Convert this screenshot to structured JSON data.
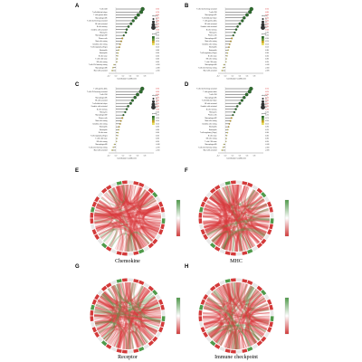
{
  "panel_letters": [
    "A",
    "B",
    "C",
    "D",
    "E",
    "F",
    "G",
    "H"
  ],
  "chord_captions": [
    "Chemokine",
    "MHC",
    "Receptor",
    "Immune checkpoint"
  ],
  "lollipop_axis_label": "Correlation Coefficient",
  "legend": {
    "size_title": "abs(cor)",
    "size_values": [
      "0.1",
      "0.2",
      "0.3",
      "0.4"
    ],
    "color_title": "pvalue"
  },
  "colors": {
    "dot_strong": "#2e6b2e",
    "dot_mid": "#c9a227",
    "dot_weak": "#e8e060",
    "pval_red": "#d62728",
    "chord": "#d9393c",
    "ring_green": "#4f9a4a",
    "ring_red": "#d33a3a"
  },
  "chart_data": [
    {
      "type": "scatter",
      "panel": "A",
      "style": "lollipop",
      "xlabel": "Correlation Coefficient",
      "xlim": [
        -0.2,
        0.8
      ],
      "categories": [
        "T cells CD8",
        "T cells follicular helper",
        "T cells gamma delta",
        "Macrophages M1",
        "T cells CD4 memory activated",
        "NK cells activated",
        "B cells memory",
        "Dendritic cells activated",
        "Monocytes",
        "Macrophages M2",
        "Plasma cells",
        "Mast cells resting",
        "Dendritic cells resting",
        "T cells regulatory (Tregs)",
        "Neutrophils",
        "Eosinophils",
        "B cells naive",
        "T cells CD4 naive",
        "NK cells resting",
        "T cells CD4 memory resting",
        "Macrophages M0",
        "Mast cells activated"
      ],
      "values": [
        0.74,
        0.7,
        0.62,
        0.55,
        0.48,
        0.42,
        0.35,
        0.3,
        0.28,
        0.22,
        0.18,
        0.15,
        0.12,
        0.1,
        0.08,
        0.06,
        0.05,
        0.04,
        0.03,
        -0.05,
        -0.08,
        -0.1
      ]
    },
    {
      "type": "scatter",
      "panel": "B",
      "style": "lollipop",
      "xlabel": "Correlation Coefficient",
      "xlim": [
        -0.2,
        0.8
      ],
      "categories": [
        "T cells CD4 memory activated",
        "T cells CD8",
        "Macrophages M1",
        "T cells follicular helper",
        "T cells gamma delta",
        "NK cells activated",
        "Dendritic cells activated",
        "B cells memory",
        "Monocytes",
        "Plasma cells",
        "Macrophages M2",
        "Mast cells resting",
        "Dendritic cells resting",
        "Neutrophils",
        "Eosinophils",
        "T cells regulatory (Tregs)",
        "B cells naive",
        "NK cells resting",
        "T cells CD4 naive",
        "Macrophages M0",
        "T cells CD4 memory resting",
        "Mast cells activated"
      ],
      "values": [
        0.72,
        0.68,
        0.6,
        0.52,
        0.47,
        0.4,
        0.34,
        0.3,
        0.26,
        0.22,
        0.18,
        0.15,
        0.12,
        0.1,
        0.08,
        0.06,
        0.05,
        0.03,
        0.02,
        -0.04,
        -0.06,
        -0.09
      ]
    },
    {
      "type": "scatter",
      "panel": "C",
      "style": "lollipop",
      "xlabel": "Correlation Coefficient",
      "xlim": [
        -0.2,
        0.8
      ],
      "categories": [
        "T cells gamma delta",
        "T cells CD4 memory activated",
        "T cells CD8",
        "Macrophages M1",
        "NK cells activated",
        "T cells follicular helper",
        "Dendritic cells activated",
        "B cells memory",
        "Monocytes",
        "Macrophages M2",
        "Plasma cells",
        "Mast cells resting",
        "Dendritic cells resting",
        "Eosinophils",
        "Neutrophils",
        "B cells naive",
        "T cells regulatory (Tregs)",
        "T cells CD4 naive",
        "NK cells resting",
        "Macrophages M0",
        "T cells CD4 memory resting",
        "Mast cells activated"
      ],
      "values": [
        0.73,
        0.69,
        0.6,
        0.53,
        0.46,
        0.41,
        0.34,
        0.3,
        0.26,
        0.21,
        0.18,
        0.14,
        0.12,
        0.09,
        0.08,
        0.06,
        0.05,
        0.03,
        0.02,
        -0.04,
        -0.07,
        -0.1
      ]
    },
    {
      "type": "scatter",
      "panel": "D",
      "style": "lollipop",
      "xlabel": "Correlation Coefficient",
      "xlim": [
        -0.2,
        0.8
      ],
      "categories": [
        "T cells CD4 memory activated",
        "T cells gamma delta",
        "T cells CD8",
        "Macrophages M1",
        "T cells follicular helper",
        "NK cells activated",
        "Dendritic cells activated",
        "B cells memory",
        "Monocytes",
        "Plasma cells",
        "Macrophages M2",
        "Mast cells resting",
        "Dendritic cells resting",
        "Neutrophils",
        "Eosinophils",
        "T cells regulatory (Tregs)",
        "B cells naive",
        "NK cells resting",
        "T cells CD4 naive",
        "Macrophages M0",
        "T cells CD4 memory resting",
        "Mast cells activated"
      ],
      "values": [
        0.71,
        0.67,
        0.59,
        0.52,
        0.46,
        0.4,
        0.33,
        0.29,
        0.25,
        0.21,
        0.17,
        0.14,
        0.11,
        0.09,
        0.07,
        0.06,
        0.04,
        0.03,
        0.02,
        -0.04,
        -0.06,
        -0.09
      ]
    }
  ]
}
